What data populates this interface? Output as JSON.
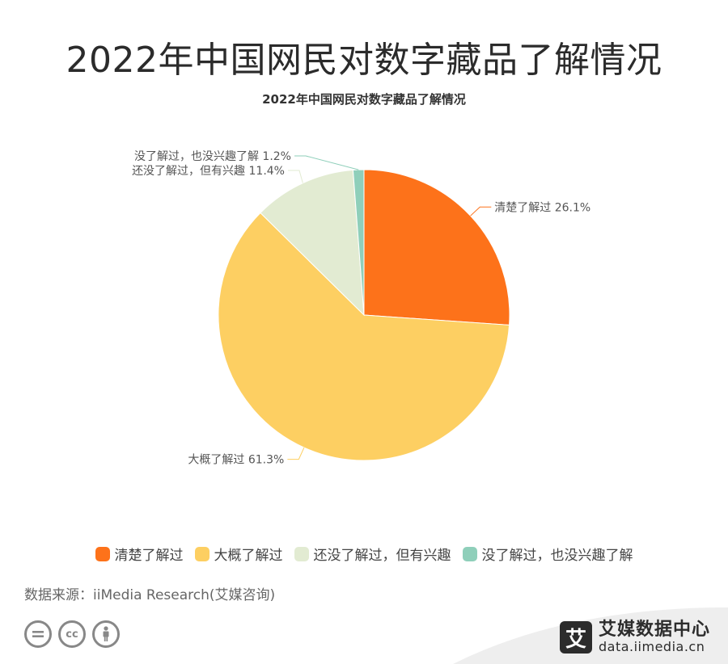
{
  "header": {
    "title": "2022年中国网民对数字藏品了解情况"
  },
  "chart_data": {
    "type": "pie",
    "title": "2022年中国网民对数字藏品了解情况",
    "slices": [
      {
        "name": "清楚了解过",
        "value": 26.1,
        "label": "清楚了解过 26.1%",
        "color": "#fd721a"
      },
      {
        "name": "大概了解过",
        "value": 61.3,
        "label": "大概了解过 61.3%",
        "color": "#fdcf62"
      },
      {
        "name": "还没了解过，但有兴趣",
        "value": 11.4,
        "label": "还没了解过，但有兴趣 11.4%",
        "color": "#e2ebd2"
      },
      {
        "name": "没了解过，也没兴趣了解",
        "value": 1.2,
        "label": "没了解过，也没兴趣了解 1.2%",
        "color": "#8fcfba"
      }
    ],
    "legend_position": "bottom"
  },
  "footer": {
    "source": "数据来源：iiMedia Research(艾媒咨询)",
    "license_icons": [
      "equal-icon",
      "cc-icon",
      "person-icon"
    ],
    "brand_logo_char": "艾",
    "brand_name": "艾媒数据中心",
    "brand_url": "data.iimedia.cn"
  }
}
